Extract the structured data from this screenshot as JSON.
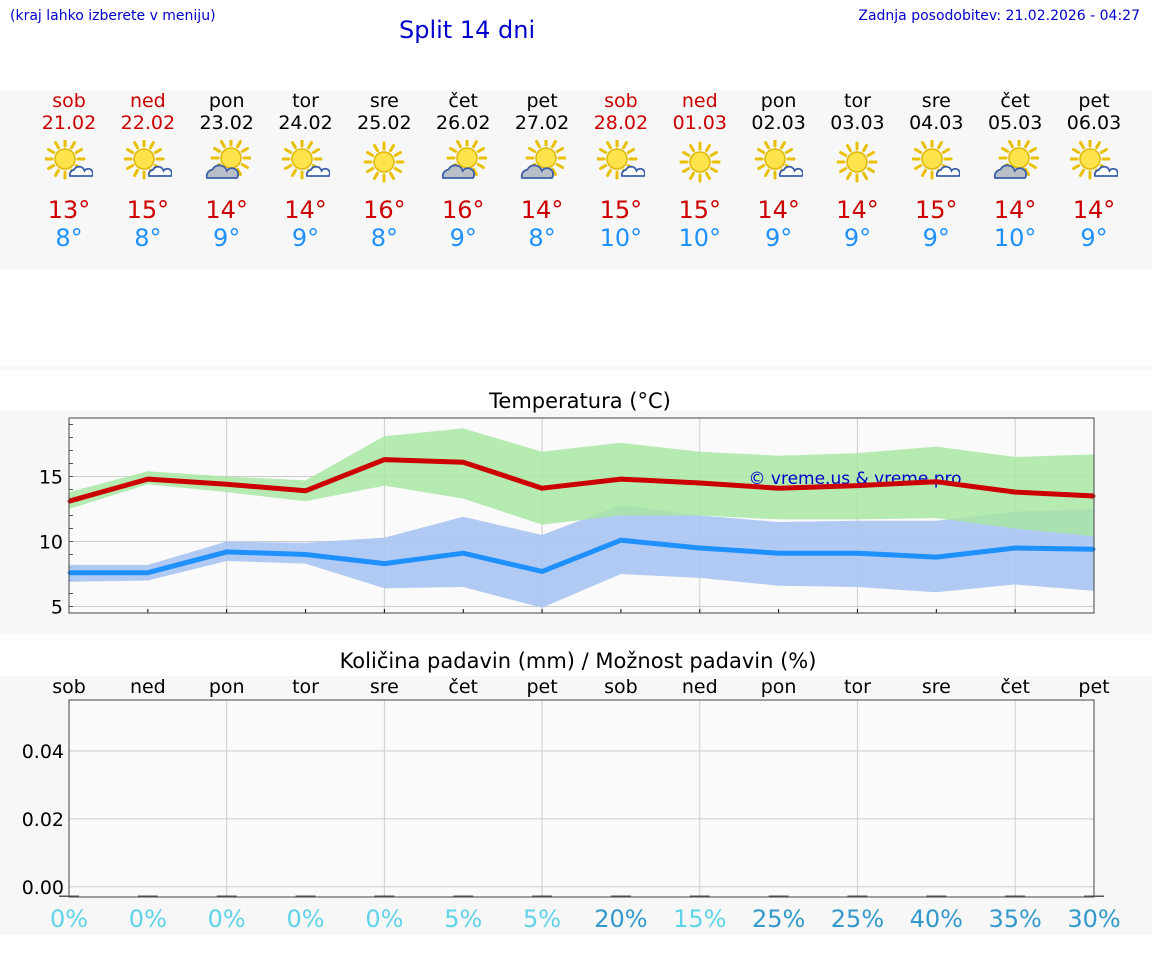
{
  "header": {
    "hint": "(kraj lahko izberete v meniju)",
    "title": "Split 14 dni",
    "updated": "Zadnja posodobitev: 21.02.2026 - 04:27"
  },
  "colors": {
    "weekend": "#cc0000",
    "weekday": "#000000",
    "max": "#cc0000",
    "min": "#1e90ff",
    "max_band": "#a8e6a3",
    "min_band": "#a9c4f2",
    "overlap_band": "#7cc4a6",
    "title_blue": "#0000cc",
    "pop_low": "#5fd3e8",
    "pop_high": "#3399cc"
  },
  "days": [
    {
      "name": "sob",
      "date": "21.02",
      "weekend": true,
      "icon": "sun-cloud-icon",
      "max": "13°",
      "min": "8°"
    },
    {
      "name": "ned",
      "date": "22.02",
      "weekend": true,
      "icon": "sun-cloud-icon",
      "max": "15°",
      "min": "8°"
    },
    {
      "name": "pon",
      "date": "23.02",
      "weekend": false,
      "icon": "cloud-sun-icon",
      "max": "14°",
      "min": "9°"
    },
    {
      "name": "tor",
      "date": "24.02",
      "weekend": false,
      "icon": "sun-cloud-icon",
      "max": "14°",
      "min": "9°"
    },
    {
      "name": "sre",
      "date": "25.02",
      "weekend": false,
      "icon": "sun-icon",
      "max": "16°",
      "min": "8°"
    },
    {
      "name": "čet",
      "date": "26.02",
      "weekend": false,
      "icon": "cloud-sun-icon",
      "max": "16°",
      "min": "9°"
    },
    {
      "name": "pet",
      "date": "27.02",
      "weekend": false,
      "icon": "cloud-sun-icon",
      "max": "14°",
      "min": "8°"
    },
    {
      "name": "sob",
      "date": "28.02",
      "weekend": true,
      "icon": "sun-cloud-icon",
      "max": "15°",
      "min": "10°"
    },
    {
      "name": "ned",
      "date": "01.03",
      "weekend": true,
      "icon": "sun-icon",
      "max": "15°",
      "min": "10°"
    },
    {
      "name": "pon",
      "date": "02.03",
      "weekend": false,
      "icon": "sun-cloud-icon",
      "max": "14°",
      "min": "9°"
    },
    {
      "name": "tor",
      "date": "03.03",
      "weekend": false,
      "icon": "sun-icon",
      "max": "14°",
      "min": "9°"
    },
    {
      "name": "sre",
      "date": "04.03",
      "weekend": false,
      "icon": "sun-cloud-icon",
      "max": "15°",
      "min": "9°"
    },
    {
      "name": "čet",
      "date": "05.03",
      "weekend": false,
      "icon": "cloud-sun-icon",
      "max": "14°",
      "min": "10°"
    },
    {
      "name": "pet",
      "date": "06.03",
      "weekend": false,
      "icon": "sun-cloud-icon",
      "max": "14°",
      "min": "9°"
    }
  ],
  "chart_data": [
    {
      "type": "line",
      "title": "Temperatura (°C)",
      "watermark": "© vreme.us & vreme.pro",
      "categories": [
        "21.02",
        "22.02",
        "23.02",
        "24.02",
        "25.02",
        "26.02",
        "27.02",
        "28.02",
        "01.03",
        "02.03",
        "03.03",
        "04.03",
        "05.03",
        "06.03"
      ],
      "ylim": [
        4.5,
        19.5
      ],
      "yticks": [
        5,
        10,
        15
      ],
      "grid": true,
      "series": [
        {
          "values": [
            13.1,
            14.8,
            14.4,
            13.9,
            16.3,
            16.1,
            14.1,
            14.8,
            14.5,
            14.1,
            14.3,
            14.6,
            13.8,
            13.5
          ]
        },
        {
          "values": [
            7.6,
            7.6,
            9.2,
            9.0,
            8.3,
            9.1,
            7.7,
            10.1,
            9.5,
            9.1,
            9.1,
            8.8,
            9.5,
            9.4
          ]
        }
      ],
      "bands": [
        {
          "lower": [
            12.5,
            14.4,
            13.8,
            13.1,
            14.3,
            13.3,
            11.3,
            12.0,
            12.0,
            11.7,
            11.7,
            11.8,
            11.0,
            10.4
          ],
          "upper": [
            13.8,
            15.4,
            15.0,
            14.7,
            18.1,
            18.7,
            16.9,
            17.6,
            16.9,
            16.6,
            16.8,
            17.3,
            16.5,
            16.7
          ]
        },
        {
          "lower": [
            6.9,
            7.0,
            8.5,
            8.3,
            6.4,
            6.5,
            4.9,
            7.5,
            7.2,
            6.6,
            6.5,
            6.1,
            6.7,
            6.2
          ],
          "upper": [
            8.2,
            8.2,
            10.0,
            9.9,
            10.3,
            11.9,
            10.5,
            12.8,
            12.0,
            11.5,
            11.6,
            11.6,
            12.3,
            12.5
          ]
        }
      ]
    },
    {
      "type": "bar",
      "title": "Količina padavin (mm) / Možnost padavin (%)",
      "categories": [
        "sob",
        "ned",
        "pon",
        "tor",
        "sre",
        "čet",
        "pet",
        "sob",
        "ned",
        "pon",
        "tor",
        "sre",
        "čet",
        "pet"
      ],
      "values": [
        0,
        0,
        0,
        0,
        0,
        0,
        0,
        0,
        0,
        0,
        0,
        0,
        0,
        0
      ],
      "probability": [
        "0%",
        "0%",
        "0%",
        "0%",
        "0%",
        "5%",
        "5%",
        "20%",
        "15%",
        "25%",
        "25%",
        "40%",
        "35%",
        "30%"
      ],
      "prob_values": [
        0,
        0,
        0,
        0,
        0,
        5,
        5,
        20,
        15,
        25,
        25,
        40,
        35,
        30
      ],
      "yticks": [
        "0.00",
        "0.02",
        "0.04"
      ],
      "ylim": [
        -0.003,
        0.055
      ],
      "grid": true
    }
  ]
}
